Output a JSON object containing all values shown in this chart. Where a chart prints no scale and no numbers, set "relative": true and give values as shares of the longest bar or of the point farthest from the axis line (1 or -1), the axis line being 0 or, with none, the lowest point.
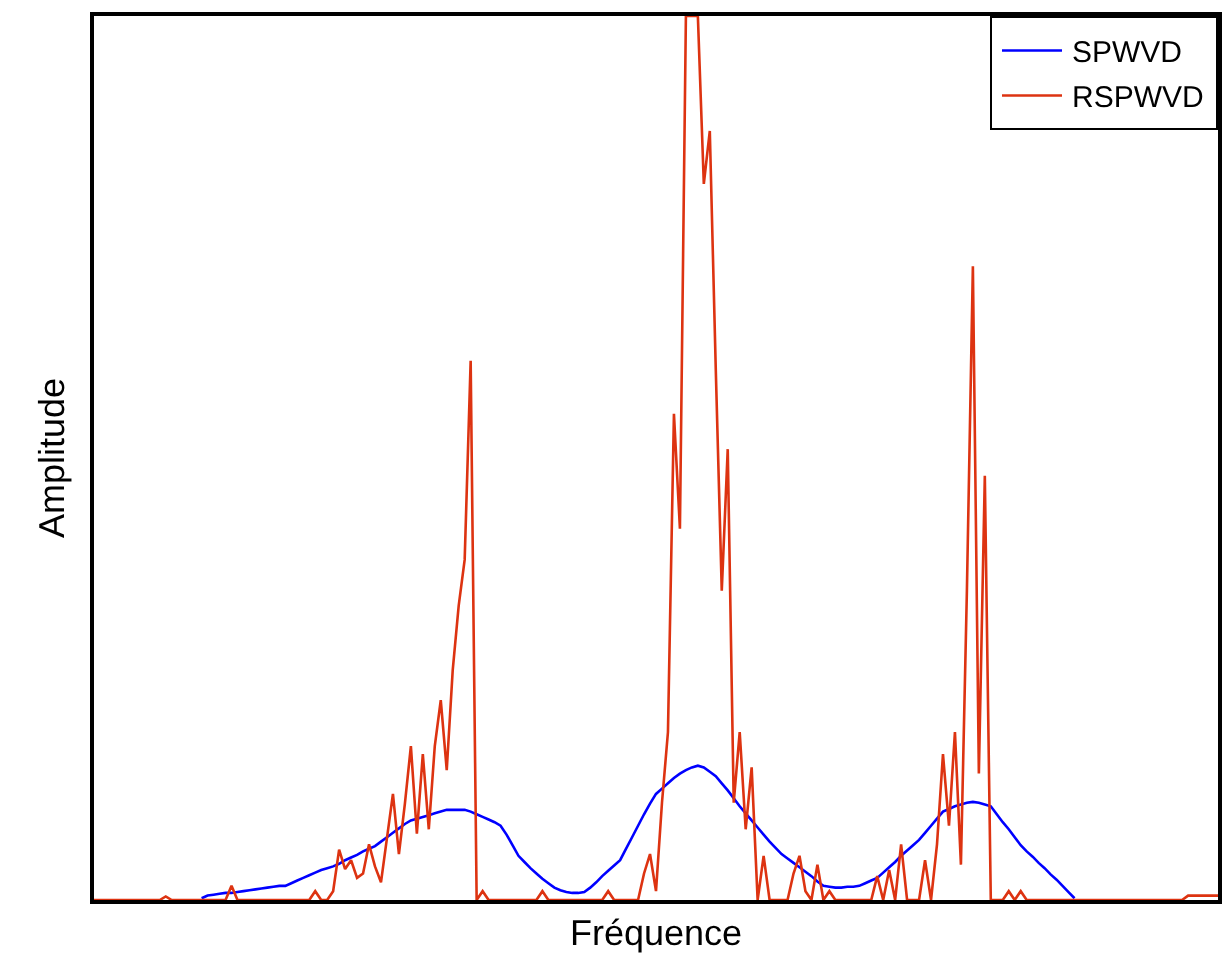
{
  "chart_data": {
    "type": "line",
    "relative": true,
    "xlabel": "Fréquence",
    "ylabel": "Amplitude",
    "legend": "top right",
    "marker": "none",
    "line_style": "solid",
    "categories": [
      null,
      null,
      null,
      null,
      null,
      null,
      null,
      null,
      null,
      null,
      null,
      null,
      null,
      null,
      null,
      null,
      null,
      null,
      null,
      null,
      null,
      null,
      null,
      null,
      null,
      null,
      null,
      null,
      null,
      null,
      null,
      null,
      null,
      null,
      null,
      null,
      null,
      null,
      null,
      null,
      null,
      null,
      null,
      null,
      null,
      null,
      null,
      null,
      null,
      null,
      null,
      null,
      null,
      null,
      null,
      null,
      null,
      null,
      null,
      null,
      null,
      null,
      null,
      null,
      null,
      null,
      null,
      null,
      null,
      null,
      null,
      null,
      null,
      null,
      null,
      null,
      null,
      null,
      null,
      null,
      null,
      null,
      null,
      null,
      null,
      null,
      null,
      null,
      null,
      null,
      null,
      null,
      null,
      null,
      null,
      null,
      null,
      null,
      null,
      null,
      null,
      null,
      null,
      null,
      null,
      null,
      null,
      null,
      null,
      null,
      null,
      null,
      null,
      null,
      null,
      null,
      null,
      null,
      null,
      null,
      null,
      null,
      null,
      null,
      null,
      null,
      null,
      null,
      null,
      null,
      null,
      null,
      null,
      null,
      null,
      null,
      null,
      null,
      null,
      null,
      null,
      null,
      null,
      null,
      null,
      null,
      null,
      null,
      null,
      null,
      null,
      null,
      null,
      null,
      null,
      null,
      null,
      null,
      null,
      null,
      null,
      null,
      null,
      null,
      null,
      null,
      null,
      null,
      null,
      null,
      null,
      null,
      null,
      null,
      null,
      null,
      null,
      null,
      null,
      null,
      null,
      null,
      null,
      null,
      null,
      null,
      null,
      null,
      null
    ],
    "series": [
      {
        "name": "SPWVD",
        "color": "#0000ff",
        "values": [
          null,
          null,
          null,
          null,
          null,
          null,
          null,
          null,
          null,
          null,
          null,
          null,
          null,
          null,
          null,
          null,
          null,
          null,
          0.002,
          0.005,
          0.006,
          0.007,
          0.008,
          0.008,
          0.009,
          0.01,
          0.011,
          0.012,
          0.013,
          0.014,
          0.015,
          0.016,
          0.016,
          0.019,
          0.022,
          0.025,
          0.028,
          0.031,
          0.034,
          0.036,
          0.038,
          0.041,
          0.045,
          0.048,
          0.051,
          0.055,
          0.058,
          0.061,
          0.066,
          0.071,
          0.076,
          0.081,
          0.086,
          0.09,
          0.092,
          0.094,
          0.096,
          0.098,
          0.1,
          0.102,
          0.102,
          0.102,
          0.102,
          0.1,
          0.097,
          0.094,
          0.091,
          0.088,
          0.084,
          0.074,
          0.062,
          0.05,
          0.043,
          0.036,
          0.03,
          0.024,
          0.019,
          0.014,
          0.011,
          0.009,
          0.008,
          0.008,
          0.009,
          0.014,
          0.02,
          0.027,
          0.033,
          0.039,
          0.045,
          0.058,
          0.071,
          0.084,
          0.097,
          0.109,
          0.12,
          0.126,
          0.132,
          0.138,
          0.143,
          0.147,
          0.15,
          0.152,
          0.15,
          0.145,
          0.14,
          0.132,
          0.124,
          0.115,
          0.106,
          0.098,
          0.09,
          0.082,
          0.074,
          0.066,
          0.059,
          0.052,
          0.047,
          0.042,
          0.037,
          0.032,
          0.027,
          0.021,
          0.016,
          0.015,
          0.014,
          0.014,
          0.015,
          0.015,
          0.016,
          0.019,
          0.022,
          0.025,
          0.031,
          0.037,
          0.043,
          0.05,
          0.056,
          0.062,
          0.068,
          0.076,
          0.084,
          0.092,
          0.1,
          0.103,
          0.106,
          0.108,
          0.11,
          0.111,
          0.11,
          0.108,
          0.106,
          0.097,
          0.088,
          0.08,
          0.071,
          0.062,
          0.055,
          0.049,
          0.042,
          0.036,
          0.029,
          0.023,
          0.016,
          0.009,
          0.002,
          null,
          null,
          null,
          null,
          null,
          null,
          null,
          null,
          null,
          null,
          null,
          null,
          null,
          null,
          null,
          null,
          null,
          null,
          null,
          null,
          null,
          null,
          null,
          null
        ]
      },
      {
        "name": "RSPWVD",
        "color": "#dd3311",
        "values": [
          0,
          0,
          0,
          0,
          0,
          0,
          0,
          0,
          0,
          0,
          0,
          0,
          0.004,
          0,
          0,
          0,
          0,
          0,
          0,
          0,
          0,
          0,
          0,
          0.016,
          0,
          0,
          0,
          0,
          0,
          0,
          0,
          0,
          0,
          0,
          0,
          0,
          0,
          0.01,
          0,
          0,
          0.01,
          0.057,
          0.035,
          0.045,
          0.025,
          0.03,
          0.063,
          0.038,
          0.02,
          0.07,
          0.12,
          0.052,
          0.109,
          0.174,
          0.075,
          0.165,
          0.08,
          0.174,
          0.226,
          0.147,
          0.26,
          0.333,
          0.385,
          0.61,
          0,
          0.01,
          0,
          0,
          0,
          0,
          0,
          0,
          0,
          0,
          0,
          0.01,
          0,
          0,
          0,
          0,
          0,
          0,
          0,
          0,
          0,
          0,
          0.01,
          0,
          0,
          0,
          0,
          0,
          0.03,
          0.052,
          0.01,
          0.11,
          0.19,
          0.55,
          0.42,
          1,
          1,
          1,
          0.81,
          0.87,
          0.6,
          0.35,
          0.51,
          0.11,
          0.19,
          0.08,
          0.15,
          0,
          0.05,
          0,
          0,
          0,
          0,
          0.03,
          0.05,
          0.01,
          0,
          0.04,
          0,
          0.01,
          0,
          0,
          0,
          0,
          0,
          0,
          0,
          0.027,
          0,
          0.034,
          0,
          0.063,
          0,
          0,
          0,
          0.045,
          0,
          0.063,
          0.165,
          0.084,
          0.19,
          0.04,
          0.35,
          0.717,
          0.143,
          0.48,
          0,
          0,
          0,
          0.01,
          0,
          0.01,
          0,
          0,
          0,
          0,
          0,
          0,
          0,
          0,
          0,
          0,
          0,
          0,
          0,
          0,
          0,
          0,
          0,
          0,
          0,
          0,
          0,
          0,
          0,
          0,
          0,
          0,
          0,
          0.005,
          0.005,
          0.005,
          0.005,
          0.005,
          0.005
        ]
      }
    ]
  }
}
